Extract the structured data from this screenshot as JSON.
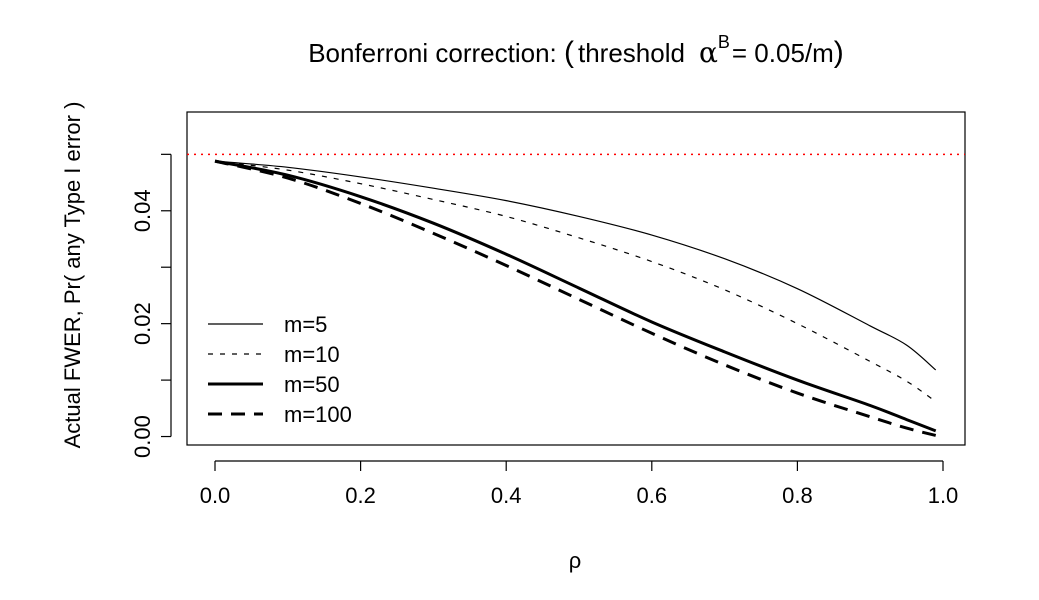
{
  "chart_data": {
    "type": "line",
    "title": {
      "prefix": "Bonferroni correction: ",
      "open_paren": "(",
      "threshold_word": "threshold",
      "alpha": "α",
      "superscript": "B",
      "equals_expr": "= 0.05/m",
      "close_paren": ")"
    },
    "xlabel": "ρ",
    "ylabel": "Actual FWER, Pr( any Type I error )",
    "xlim": [
      0.0,
      1.0
    ],
    "ylim": [
      -0.0015,
      0.0575
    ],
    "x_ticks": [
      "0.0",
      "0.2",
      "0.4",
      "0.6",
      "0.8",
      "1.0"
    ],
    "y_ticks": [
      "0.00",
      "0.02",
      "0.04"
    ],
    "reference_line": {
      "y": 0.05,
      "color": "#ff0000",
      "style": "dotted"
    },
    "legend_position": "bottom-left",
    "x": [
      0.0,
      0.1,
      0.2,
      0.3,
      0.4,
      0.5,
      0.6,
      0.7,
      0.8,
      0.9,
      0.95,
      0.99
    ],
    "series": [
      {
        "name": "m=5",
        "style": "thin-solid",
        "values": [
          0.0488,
          0.0477,
          0.046,
          0.044,
          0.0418,
          0.039,
          0.0357,
          0.0315,
          0.0262,
          0.0196,
          0.0162,
          0.0118
        ]
      },
      {
        "name": "m=10",
        "style": "thin-dashed",
        "values": [
          0.0488,
          0.0472,
          0.0448,
          0.042,
          0.039,
          0.0352,
          0.031,
          0.026,
          0.02,
          0.0133,
          0.0098,
          0.0062
        ]
      },
      {
        "name": "m=50",
        "style": "thick-solid",
        "values": [
          0.0488,
          0.0463,
          0.0425,
          0.0378,
          0.0323,
          0.0263,
          0.0203,
          0.015,
          0.01,
          0.0055,
          0.003,
          0.001
        ]
      },
      {
        "name": "m=100",
        "style": "thick-dashed",
        "values": [
          0.0488,
          0.0458,
          0.0413,
          0.036,
          0.0303,
          0.0243,
          0.0183,
          0.0127,
          0.0077,
          0.0035,
          0.0015,
          0.0002
        ]
      }
    ]
  }
}
